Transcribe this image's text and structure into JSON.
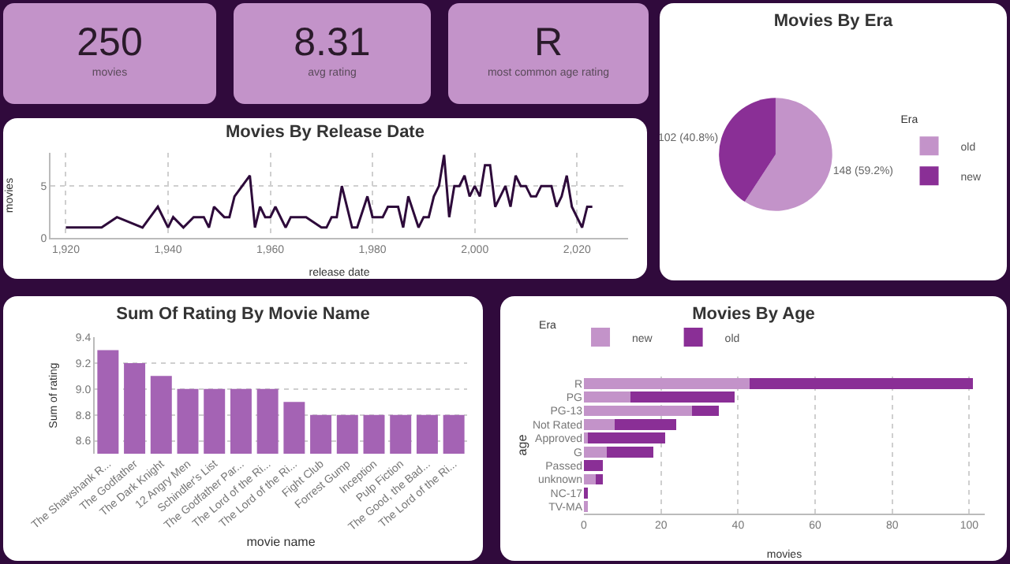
{
  "chart_data": [
    {
      "type": "other",
      "title": "250",
      "annotations": [
        "movies"
      ]
    },
    {
      "type": "other",
      "title": "8.31",
      "annotations": [
        "avg rating"
      ]
    },
    {
      "type": "other",
      "title": "R",
      "annotations": [
        "most common age rating"
      ]
    },
    {
      "type": "pie",
      "title": "Movies By Era",
      "categories": [
        "old",
        "new"
      ],
      "values": [
        148,
        102
      ],
      "colors": [
        "#c393c9",
        "#8a2f96"
      ],
      "value_labels": [
        "148 (59.2%)",
        "102 (40.8%)"
      ],
      "legend": "right",
      "legend_title": "Era"
    },
    {
      "type": "line",
      "title": "Movies By Release Date",
      "xlabel": "release date",
      "ylabel": "movies",
      "x": [
        1920,
        1927,
        1930,
        1935,
        1938,
        1940,
        1941,
        1943,
        1945,
        1947,
        1948,
        1949,
        1951,
        1952,
        1953,
        1956,
        1957,
        1958,
        1959,
        1960,
        1961,
        1963,
        1964,
        1967,
        1970,
        1971,
        1972,
        1973,
        1974,
        1976,
        1977,
        1979,
        1980,
        1982,
        1983,
        1985,
        1986,
        1987,
        1989,
        1990,
        1991,
        1992,
        1993,
        1994,
        1995,
        1996,
        1997,
        1998,
        1999,
        2000,
        2001,
        2002,
        2003,
        2004,
        2005,
        2006,
        2007,
        2008,
        2009,
        2010,
        2011,
        2012,
        2013,
        2015,
        2016,
        2017,
        2018,
        2019,
        2021,
        2022,
        2023
      ],
      "series": [
        {
          "color": "#2d0a3a",
          "values": [
            1,
            1,
            2,
            1,
            3,
            1,
            2,
            1,
            2,
            2,
            1,
            3,
            2,
            2,
            4,
            6,
            1,
            3,
            2,
            2,
            3,
            1,
            2,
            2,
            1,
            1,
            2,
            2,
            5,
            1,
            1,
            4,
            2,
            2,
            3,
            3,
            1,
            4,
            1,
            2,
            2,
            4,
            5,
            8,
            2,
            5,
            5,
            6,
            4,
            5,
            4,
            7,
            7,
            3,
            4,
            5,
            3,
            6,
            5,
            5,
            4,
            4,
            5,
            5,
            3,
            4,
            6,
            3,
            1,
            3,
            3
          ]
        }
      ],
      "xlim": [
        1917,
        2030
      ],
      "xticks": [
        {
          "value": 1920,
          "label": "1,920"
        },
        {
          "value": 1940,
          "label": "1,940"
        },
        {
          "value": 1960,
          "label": "1,960"
        },
        {
          "value": 1980,
          "label": "1,980"
        },
        {
          "value": 2000,
          "label": "2,000"
        },
        {
          "value": 2020,
          "label": "2,020"
        }
      ],
      "ylim": [
        0,
        8.2
      ],
      "yticks": [
        0,
        5
      ],
      "grid": true,
      "marker": "none",
      "line_style": "solid"
    },
    {
      "type": "bar",
      "title": "Sum Of Rating By Movie Name",
      "xlabel": "movie name",
      "ylabel": "Sum of rating",
      "categories": [
        "The Shawshank R...",
        "The Godfather",
        "The Dark Knight",
        "12 Angry Men",
        "Schindler's List",
        "The Godfather Par...",
        "The Lord of the Ri...",
        "The Lord of the Ri...",
        "Fight Club",
        "Forrest Gump",
        "Inception",
        "Pulp Fiction",
        "The Good, the Bad...",
        "The Lord of the Ri..."
      ],
      "values": [
        9.3,
        9.2,
        9.1,
        9.0,
        9.0,
        9.0,
        9.0,
        8.9,
        8.8,
        8.8,
        8.8,
        8.8,
        8.8,
        8.8
      ],
      "color": "#a463b4",
      "ylim": [
        8.5,
        9.4
      ],
      "yticks": [
        8.6,
        8.8,
        {
          "value": 9.0,
          "label": "9.0"
        },
        9.2,
        9.4
      ],
      "grid": "y"
    },
    {
      "type": "bar",
      "title": "Movies By Age",
      "xlabel": "movies",
      "ylabel": "age",
      "orientation": "horizontal",
      "stacked": true,
      "categories": [
        "R",
        "PG",
        "PG-13",
        "Not Rated",
        "Approved",
        "G",
        "Passed",
        "unknown",
        "NC-17",
        "TV-MA"
      ],
      "series": [
        {
          "name": "new",
          "color": "#c393c9",
          "values": [
            43,
            12,
            28,
            8,
            1,
            6,
            0,
            3,
            0,
            1
          ]
        },
        {
          "name": "old",
          "color": "#8a2f96",
          "values": [
            58,
            27,
            7,
            16,
            20,
            12,
            5,
            2,
            1,
            0
          ]
        }
      ],
      "xlim": [
        0,
        104
      ],
      "xticks": [
        0,
        20,
        40,
        60,
        80,
        100
      ],
      "grid": "x",
      "legend": "top left",
      "legend_title": "Era"
    }
  ]
}
